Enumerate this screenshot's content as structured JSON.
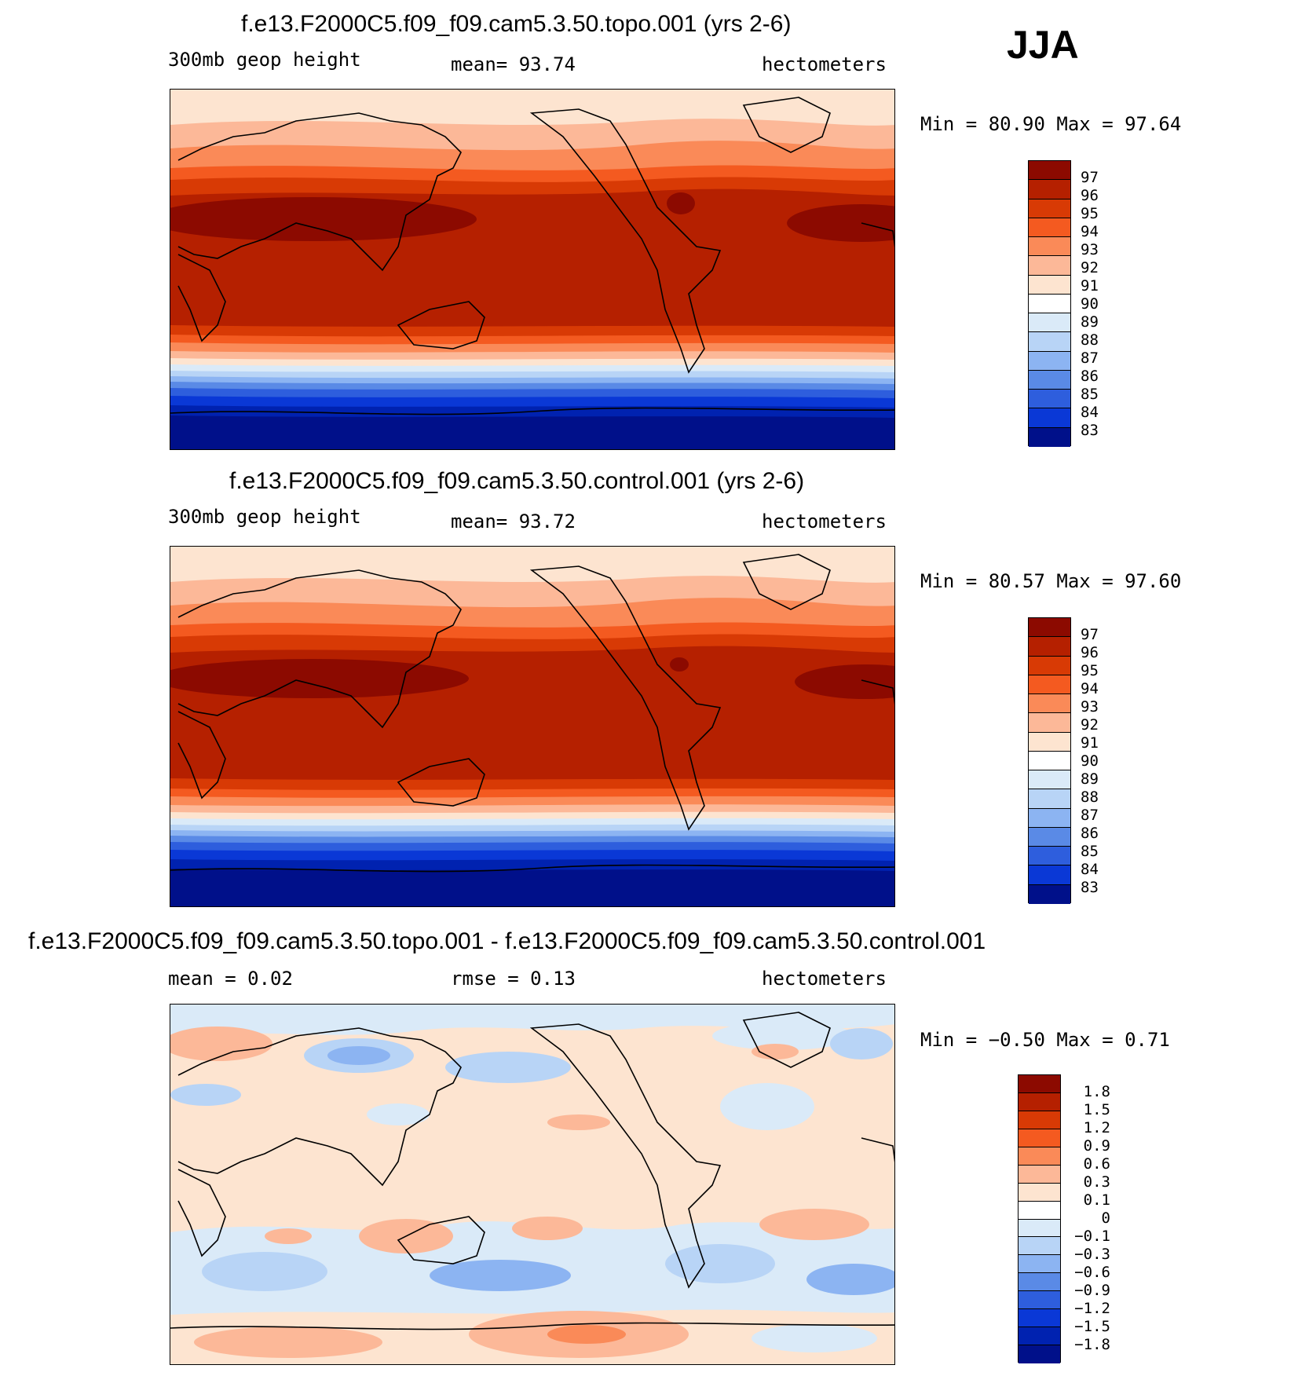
{
  "season": "JJA",
  "panels": [
    {
      "title": "f.e13.F2000C5.f09_f09.cam5.3.50.topo.001 (yrs 2-6)",
      "left": "300mb geop height",
      "center": "mean=  93.74",
      "right": "hectometers",
      "stats": "Min =  80.90 Max =  97.64",
      "legend_labels": [
        "97",
        "96",
        "95",
        "94",
        "93",
        "92",
        "91",
        "90",
        "89",
        "88",
        "87",
        "86",
        "85",
        "84",
        "83"
      ]
    },
    {
      "title": "f.e13.F2000C5.f09_f09.cam5.3.50.control.001 (yrs 2-6)",
      "left": "300mb geop height",
      "center": "mean=  93.72",
      "right": "hectometers",
      "stats": "Min =  80.57 Max =  97.60",
      "legend_labels": [
        "97",
        "96",
        "95",
        "94",
        "93",
        "92",
        "91",
        "90",
        "89",
        "88",
        "87",
        "86",
        "85",
        "84",
        "83"
      ]
    },
    {
      "title": "f.e13.F2000C5.f09_f09.cam5.3.50.topo.001 - f.e13.F2000C5.f09_f09.cam5.3.50.control.001",
      "left": "mean =   0.02",
      "center": "rmse =   0.13",
      "right": "hectometers",
      "stats": "Min =  −0.50 Max =   0.71",
      "legend_labels": [
        "1.8",
        "1.5",
        "1.2",
        "0.9",
        "0.6",
        "0.3",
        "0.1",
        "0",
        "−0.1",
        "−0.3",
        "−0.6",
        "−0.9",
        "−1.2",
        "−1.5",
        "−1.8"
      ]
    }
  ],
  "colors": {
    "abs_scale": [
      "#8c0a00",
      "#b52000",
      "#d83a05",
      "#f45a20",
      "#fa8a58",
      "#fcb898",
      "#fde4d0",
      "#daeaf8",
      "#b8d4f6",
      "#8cb4f2",
      "#5a8ae6",
      "#2e5edd",
      "#0a38d6",
      "#0022b0",
      "#00108a"
    ],
    "diff_scale": [
      "#8c0a00",
      "#b52000",
      "#d83a05",
      "#f45a20",
      "#fa8a58",
      "#fcb898",
      "#fde4d0",
      "#daeaf8",
      "#b8d4f6",
      "#8cb4f2",
      "#5a8ae6",
      "#2e5edd",
      "#0a38d6",
      "#0022b0",
      "#00108a",
      "#000a70"
    ]
  }
}
